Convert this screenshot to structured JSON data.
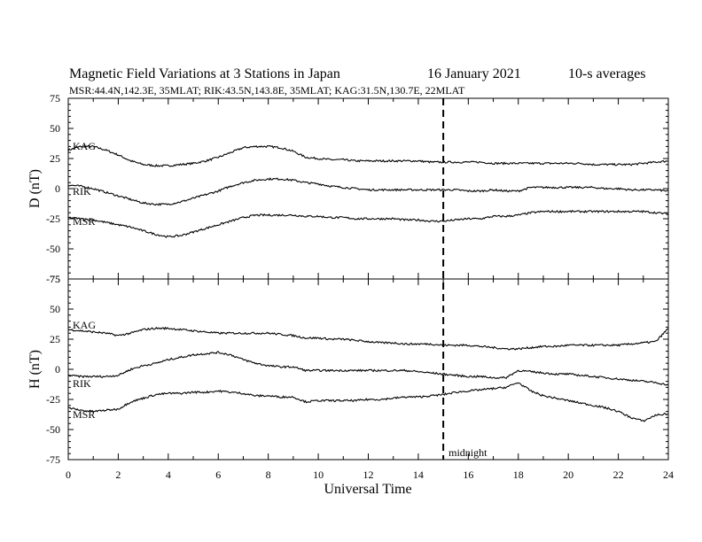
{
  "header": {
    "title": "Magnetic Field Variations at 3 Stations in Japan",
    "date": "16 January  2021",
    "averaging": "10-s averages",
    "stations_line": "MSR:44.4N,142.3E, 35MLAT;  RIK:43.5N,143.8E, 35MLAT;  KAG:31.5N,130.7E, 22MLAT"
  },
  "chart_data": [
    {
      "type": "line",
      "panel": "D",
      "ylabel": "D (nT)",
      "xlabel": "",
      "xlim": [
        0,
        24
      ],
      "ylim": [
        -75,
        75
      ],
      "yticks": [
        75,
        50,
        25,
        0,
        -25,
        -50,
        -75
      ],
      "xticks": [
        0,
        2,
        4,
        6,
        8,
        10,
        12,
        14,
        16,
        18,
        20,
        22,
        24
      ],
      "x": [
        0,
        0.5,
        1,
        1.5,
        2,
        2.5,
        3,
        3.5,
        4,
        4.5,
        5,
        5.5,
        6,
        6.5,
        7,
        7.5,
        8,
        8.5,
        9,
        9.5,
        10,
        10.5,
        11,
        11.5,
        12,
        12.5,
        13,
        13.5,
        14,
        14.5,
        15,
        15.5,
        16,
        16.5,
        17,
        17.5,
        18,
        18.5,
        19,
        19.5,
        20,
        20.5,
        21,
        21.5,
        22,
        22.5,
        23,
        23.5,
        24
      ],
      "series": [
        {
          "name": "KAG",
          "values": [
            32,
            35,
            35,
            32,
            28,
            23,
            20,
            19,
            19,
            20,
            21,
            23,
            26,
            30,
            34,
            35,
            35,
            34,
            31,
            26,
            25,
            24,
            24,
            23,
            23,
            23,
            23,
            23,
            23,
            22,
            22,
            22,
            22,
            22,
            21,
            21,
            21,
            21,
            21,
            21,
            21,
            21,
            20,
            20,
            20,
            20,
            21,
            22,
            23
          ]
        },
        {
          "name": "RIK",
          "values": [
            3,
            2,
            0,
            -3,
            -6,
            -9,
            -12,
            -13,
            -13,
            -11,
            -8,
            -5,
            -2,
            2,
            5,
            7,
            8,
            8,
            7,
            5,
            4,
            2,
            1,
            0,
            -1,
            -1,
            -1,
            -1,
            -1,
            -1,
            -1,
            -1,
            -2,
            -2,
            -1,
            -2,
            -2,
            1,
            1,
            1,
            1,
            1,
            1,
            0,
            0,
            -1,
            -1,
            -1,
            -2
          ]
        },
        {
          "name": "MSR",
          "values": [
            -24,
            -25,
            -26,
            -28,
            -30,
            -32,
            -35,
            -38,
            -40,
            -39,
            -36,
            -33,
            -30,
            -27,
            -24,
            -22,
            -22,
            -22,
            -22,
            -23,
            -23,
            -24,
            -24,
            -25,
            -25,
            -25,
            -25,
            -26,
            -26,
            -27,
            -27,
            -26,
            -25,
            -25,
            -23,
            -23,
            -22,
            -20,
            -19,
            -19,
            -19,
            -19,
            -19,
            -19,
            -19,
            -19,
            -19,
            -20,
            -21
          ]
        }
      ]
    },
    {
      "type": "line",
      "panel": "H",
      "ylabel": "H (nT)",
      "xlabel": "Universal Time",
      "xlim": [
        0,
        24
      ],
      "ylim": [
        -75,
        75
      ],
      "yticks": [
        75,
        50,
        25,
        0,
        -25,
        -50,
        -75
      ],
      "xticks": [
        0,
        2,
        4,
        6,
        8,
        10,
        12,
        14,
        16,
        18,
        20,
        22,
        24
      ],
      "x": [
        0,
        0.5,
        1,
        1.5,
        2,
        2.5,
        3,
        3.5,
        4,
        4.5,
        5,
        5.5,
        6,
        6.5,
        7,
        7.5,
        8,
        8.5,
        9,
        9.5,
        10,
        10.5,
        11,
        11.5,
        12,
        12.5,
        13,
        13.5,
        14,
        14.5,
        15,
        15.5,
        16,
        16.5,
        17,
        17.5,
        18,
        18.5,
        19,
        19.5,
        20,
        20.5,
        21,
        21.5,
        22,
        22.5,
        23,
        23.5,
        24
      ],
      "series": [
        {
          "name": "KAG",
          "values": [
            33,
            32,
            31,
            30,
            28,
            30,
            33,
            34,
            34,
            33,
            32,
            31,
            30,
            30,
            30,
            30,
            30,
            29,
            28,
            26,
            26,
            25,
            25,
            24,
            23,
            22,
            22,
            21,
            21,
            21,
            20,
            20,
            20,
            19,
            18,
            17,
            17,
            18,
            19,
            19,
            20,
            20,
            20,
            20,
            20,
            21,
            22,
            23,
            34
          ]
        },
        {
          "name": "RIK",
          "values": [
            -5,
            -6,
            -6,
            -6,
            -5,
            0,
            3,
            5,
            8,
            10,
            12,
            13,
            14,
            12,
            8,
            5,
            3,
            2,
            2,
            -1,
            -1,
            -1,
            -1,
            -1,
            -1,
            -1,
            -1,
            -1,
            -2,
            -3,
            -4,
            -5,
            -6,
            -6,
            -7,
            -7,
            -1,
            -2,
            -3,
            -4,
            -4,
            -5,
            -6,
            -7,
            -8,
            -9,
            -10,
            -11,
            -13
          ]
        },
        {
          "name": "MSR",
          "values": [
            -32,
            -34,
            -35,
            -34,
            -33,
            -27,
            -24,
            -21,
            -20,
            -20,
            -19,
            -19,
            -18,
            -19,
            -20,
            -22,
            -22,
            -23,
            -23,
            -27,
            -26,
            -26,
            -26,
            -26,
            -25,
            -25,
            -24,
            -23,
            -23,
            -22,
            -21,
            -19,
            -18,
            -17,
            -16,
            -15,
            -11,
            -18,
            -22,
            -24,
            -26,
            -28,
            -30,
            -32,
            -35,
            -40,
            -43,
            -38,
            -37
          ]
        }
      ]
    }
  ],
  "annotations": {
    "midnight_label": "midnight",
    "midnight_ut": 15,
    "D_labels": {
      "KAG": "KAG",
      "RIK": "RIK",
      "MSR": "MSR"
    },
    "H_labels": {
      "KAG": "KAG",
      "RIK": "RIK",
      "MSR": "MSR"
    }
  }
}
